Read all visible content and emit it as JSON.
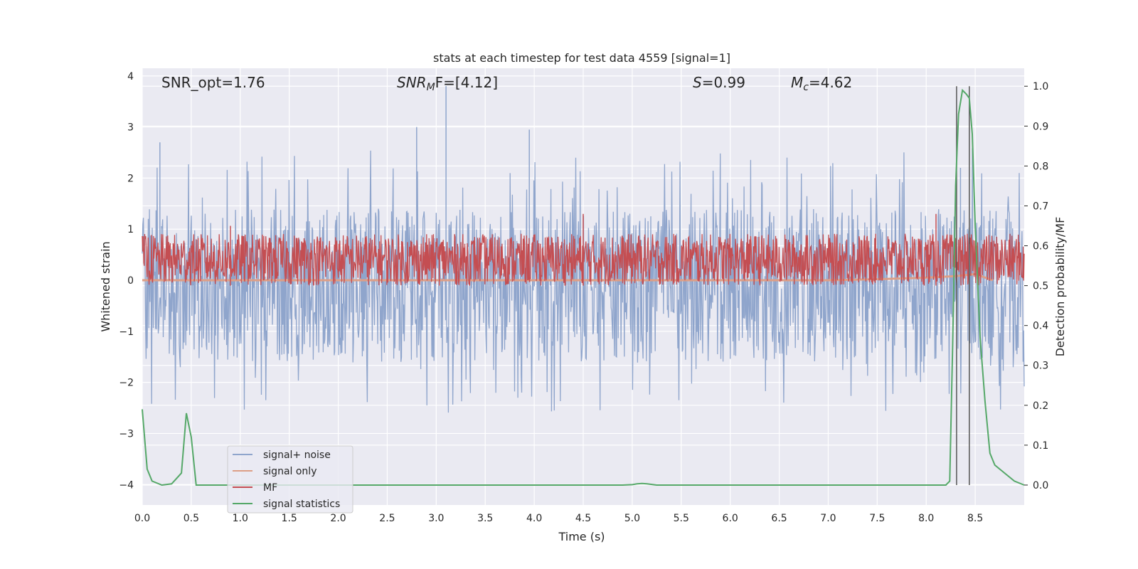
{
  "chart_data": {
    "type": "line",
    "title": "stats at each timestep for test data 4559 [signal=1]",
    "xlabel": "Time (s)",
    "ylabel": "Whitened strain",
    "ylabel_right": "Detection probability/MF",
    "xlim": [
      0.0,
      9.0
    ],
    "ylim": [
      -4.4,
      4.15
    ],
    "ylim_right": [
      -0.05,
      1.045
    ],
    "x_ticks": [
      "0.0",
      "0.5",
      "1.0",
      "1.5",
      "2.0",
      "2.5",
      "3.0",
      "3.5",
      "4.0",
      "4.5",
      "5.0",
      "5.5",
      "6.0",
      "6.5",
      "7.0",
      "7.5",
      "8.0",
      "8.5"
    ],
    "y_ticks": [
      "−4",
      "−3",
      "−2",
      "−1",
      "0",
      "1",
      "2",
      "3",
      "4"
    ],
    "y_ticks_right": [
      "0.0",
      "0.1",
      "0.2",
      "0.3",
      "0.4",
      "0.5",
      "0.6",
      "0.7",
      "0.8",
      "0.9",
      "1.0"
    ],
    "grid": true,
    "legend_position": "lower-left",
    "annotations": {
      "snr_opt": "SNR_opt=1.76",
      "snr_mf_main": "SNR",
      "snr_mf_sub": "M",
      "snr_mf_rest": "F=[4.12]",
      "s_main": "S",
      "s_rest": "=0.99",
      "mc_main": "M",
      "mc_sub": "c",
      "mc_rest": "=4.62"
    },
    "vertical_lines_x": [
      8.31,
      8.44
    ],
    "series": [
      {
        "name": "signal+ noise",
        "color": "#8fa5cc",
        "description_axis": "left",
        "envelope_upper": 1.4,
        "envelope_lower": -1.6,
        "peak_examples": [
          [
            0.18,
            2.7
          ],
          [
            3.1,
            3.8
          ],
          [
            2.8,
            3.0
          ],
          [
            3.95,
            2.95
          ],
          [
            8.35,
            2.2
          ]
        ]
      },
      {
        "name": "signal only",
        "color": "#dd9e86",
        "axis": "left",
        "x": [
          0.0,
          7.0,
          7.5,
          8.0,
          8.3,
          8.5,
          8.68
        ],
        "y": [
          0.0,
          0.0,
          0.02,
          0.05,
          0.08,
          0.12,
          0.0
        ]
      },
      {
        "name": "MF",
        "color": "#c44e52",
        "axis": "right",
        "band": [
          0.5,
          0.63
        ],
        "peak_examples": [
          [
            0.9,
            0.65
          ],
          [
            4.5,
            0.68
          ],
          [
            8.1,
            0.68
          ]
        ]
      },
      {
        "name": "signal statistics",
        "color": "#55a868",
        "axis": "right",
        "x": [
          0.0,
          0.05,
          0.1,
          0.2,
          0.3,
          0.4,
          0.45,
          0.5,
          0.55,
          0.6,
          0.7,
          1.0,
          2.0,
          3.0,
          4.0,
          4.5,
          4.9,
          5.0,
          5.05,
          5.1,
          5.15,
          5.25,
          5.5,
          6.0,
          7.0,
          8.0,
          8.2,
          8.24,
          8.27,
          8.3,
          8.33,
          8.37,
          8.41,
          8.44,
          8.47,
          8.5,
          8.55,
          8.6,
          8.65,
          8.7,
          8.8,
          8.9,
          9.0
        ],
        "y": [
          0.19,
          0.04,
          0.01,
          0.0,
          0.003,
          0.03,
          0.18,
          0.12,
          0.0,
          0.0,
          0.0,
          0.0,
          0.0,
          0.0,
          0.0,
          0.0,
          0.0,
          0.001,
          0.003,
          0.004,
          0.003,
          0.0,
          0.0,
          0.0,
          0.0,
          0.0,
          0.0,
          0.01,
          0.35,
          0.75,
          0.93,
          0.99,
          0.98,
          0.97,
          0.88,
          0.65,
          0.37,
          0.21,
          0.08,
          0.05,
          0.03,
          0.01,
          0.0
        ]
      }
    ]
  }
}
